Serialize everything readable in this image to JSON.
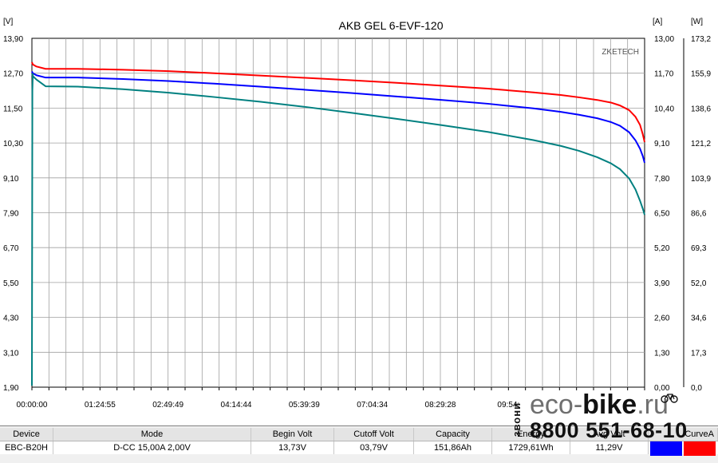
{
  "chart_data": {
    "type": "line",
    "title": "AKB GEL  6-EVF-120",
    "watermark": "ZKETECH",
    "left_axis": {
      "unit": "[V]",
      "ylim": [
        1.9,
        13.9
      ],
      "ticks": [
        "13,90",
        "12,70",
        "11,50",
        "10,30",
        "9,10",
        "7,90",
        "6,70",
        "5,50",
        "4,30",
        "3,10",
        "1,90"
      ]
    },
    "right_axis_a": {
      "unit": "[A]",
      "ylim": [
        0.0,
        13.0
      ],
      "ticks": [
        "13,00",
        "11,70",
        "10,40",
        "9,10",
        "7,80",
        "6,50",
        "5,20",
        "3,90",
        "2,60",
        "1,30",
        "0,00"
      ]
    },
    "right_axis_w": {
      "unit": "[W]",
      "ylim": [
        0.0,
        173.2
      ],
      "ticks": [
        "173,2",
        "155,9",
        "138,6",
        "121,2",
        "103,9",
        "86,6",
        "69,3",
        "52,0",
        "34,6",
        "17,3",
        "0,0"
      ]
    },
    "x_axis": {
      "range_minutes": [
        0,
        672
      ],
      "ticks": [
        "00:00:00",
        "01:24:55",
        "02:49:49",
        "04:14:44",
        "05:39:39",
        "07:04:34",
        "08:29:28",
        "09:54:"
      ]
    },
    "grid": true,
    "series": [
      {
        "color": "#ff0000",
        "axis": "left",
        "x": [
          0,
          1,
          5,
          15,
          50,
          100,
          150,
          200,
          250,
          300,
          350,
          400,
          450,
          500,
          550,
          580,
          600,
          620,
          635,
          645,
          655,
          662,
          667,
          670,
          672
        ],
        "y": [
          13.08,
          13.0,
          12.93,
          12.85,
          12.85,
          12.82,
          12.77,
          12.7,
          12.62,
          12.54,
          12.46,
          12.37,
          12.27,
          12.17,
          12.04,
          11.95,
          11.87,
          11.78,
          11.69,
          11.59,
          11.43,
          11.2,
          10.92,
          10.6,
          10.33
        ]
      },
      {
        "color": "#0000ff",
        "axis": "left",
        "x": [
          0,
          1,
          5,
          15,
          50,
          100,
          150,
          200,
          250,
          300,
          350,
          400,
          450,
          500,
          550,
          580,
          600,
          620,
          635,
          645,
          655,
          662,
          667,
          670,
          672
        ],
        "y": [
          12.76,
          12.7,
          12.63,
          12.55,
          12.55,
          12.5,
          12.43,
          12.34,
          12.24,
          12.13,
          12.02,
          11.9,
          11.78,
          11.65,
          11.49,
          11.37,
          11.27,
          11.15,
          11.02,
          10.89,
          10.67,
          10.39,
          10.1,
          9.85,
          9.62
        ]
      },
      {
        "color": "#008080",
        "axis": "left",
        "x": [
          0,
          1,
          5,
          15,
          50,
          100,
          150,
          200,
          250,
          300,
          350,
          400,
          450,
          500,
          550,
          580,
          600,
          620,
          635,
          645,
          655,
          662,
          667,
          670,
          672
        ],
        "y": [
          12.69,
          12.6,
          12.48,
          12.25,
          12.24,
          12.15,
          12.03,
          11.88,
          11.72,
          11.54,
          11.34,
          11.13,
          10.91,
          10.68,
          10.4,
          10.2,
          10.03,
          9.81,
          9.6,
          9.4,
          9.08,
          8.7,
          8.31,
          8.04,
          7.83
        ]
      },
      {
        "color": "#008080",
        "axis": "left",
        "note_start": true,
        "x": [
          0,
          0.5,
          1
        ],
        "y": [
          1.95,
          12.1,
          12.69
        ]
      }
    ]
  },
  "status": {
    "headers": [
      "Device",
      "Mode",
      "Begin Volt",
      "Cutoff Volt",
      "Capacity",
      "Energy",
      "Avg Volt",
      "CurveA"
    ],
    "values": [
      "EBC-B20H",
      "D-CC  15,00A  2,00V",
      "13,73V",
      "03,79V",
      "151,86Ah",
      "1729,61Wh",
      "11,29V",
      ""
    ],
    "swatch_colors": [
      "#0000ff",
      "#ff0000"
    ]
  },
  "logo": {
    "vertical_text": "звони",
    "brand_light": "eco-",
    "brand_bold": "bike",
    "brand_tail": ".ru",
    "phone": "8800 551-68-10"
  }
}
